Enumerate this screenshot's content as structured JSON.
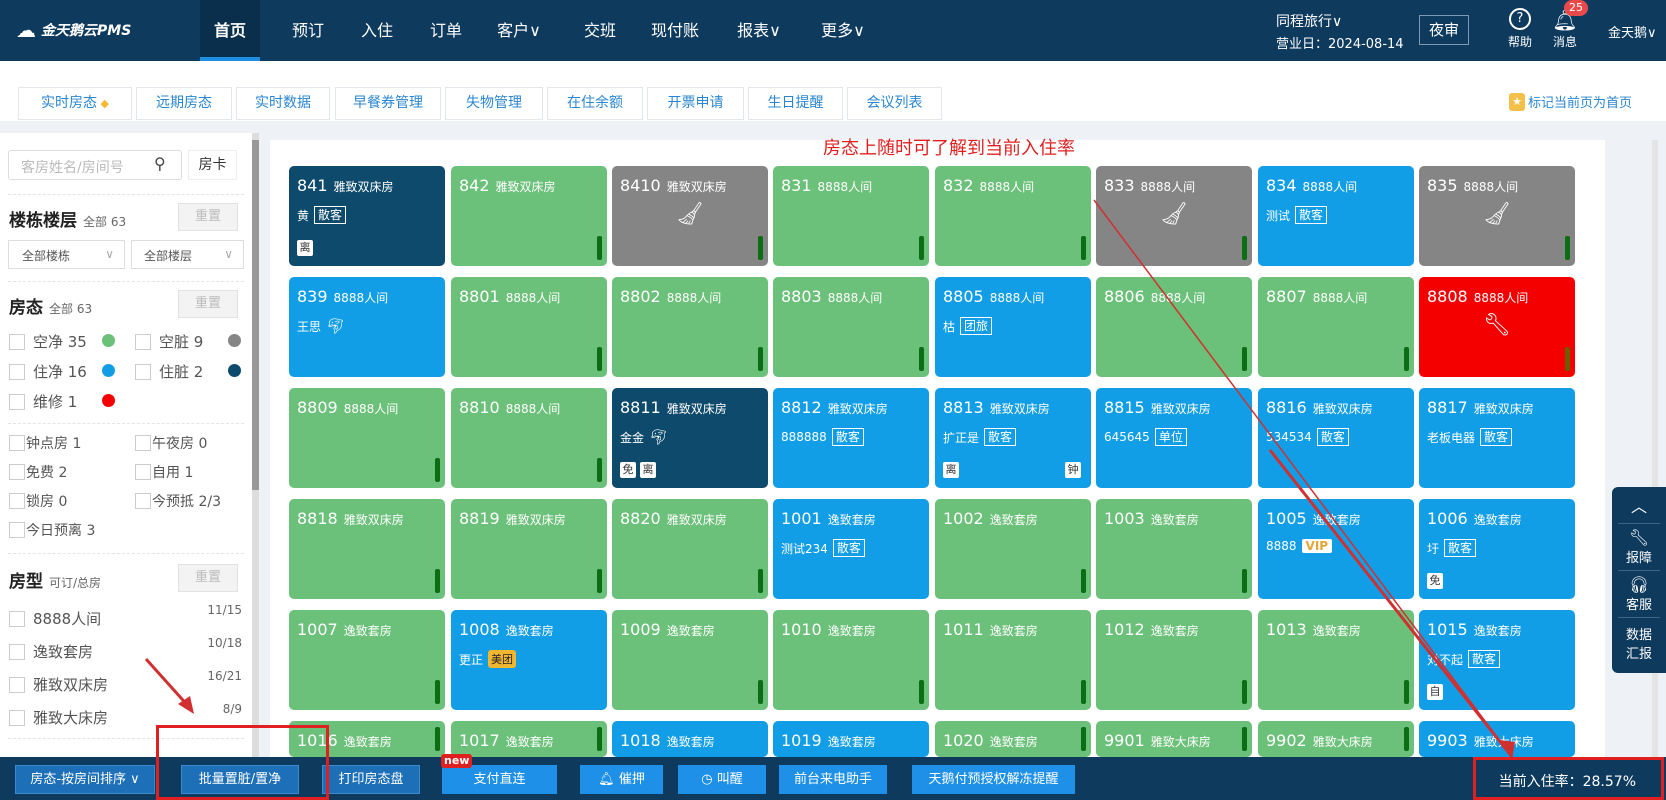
{
  "nav": {
    "logo": "金天鹅云PMS",
    "items": [
      {
        "label": "首页",
        "active": true
      },
      {
        "label": "预订"
      },
      {
        "label": "入住"
      },
      {
        "label": "订单"
      },
      {
        "label": "客户∨"
      },
      {
        "label": "交班"
      },
      {
        "label": "现付账"
      },
      {
        "label": "报表∨"
      },
      {
        "label": "更多∨"
      }
    ],
    "hotel": "同程旅行∨",
    "business_day": "营业日：2024-08-14",
    "night_audit": "夜审",
    "help": "帮助",
    "messages": "消息",
    "message_count": "25",
    "user": "金天鹅∨"
  },
  "tabs": [
    {
      "label": "实时房态",
      "active": true
    },
    {
      "label": "远期房态"
    },
    {
      "label": "实时数据"
    },
    {
      "label": "早餐券管理"
    },
    {
      "label": "失物管理"
    },
    {
      "label": "在住余额"
    },
    {
      "label": "开票申请"
    },
    {
      "label": "生日提醒"
    },
    {
      "label": "会议列表"
    }
  ],
  "set_home": "标记当前页为首页",
  "sidebar": {
    "search_placeholder": "客房姓名/房间号",
    "room_card": "房卡",
    "reset": "重置",
    "building": {
      "title": "楼栋楼层",
      "sub": "全部 63",
      "building_select": "全部楼栋",
      "floor_select": "全部楼层"
    },
    "status": {
      "title": "房态",
      "sub": "全部 63",
      "items": [
        {
          "label": "空净 35",
          "color": "#6cc17a"
        },
        {
          "label": "空脏 9",
          "color": "#858585"
        },
        {
          "label": "住净 16",
          "color": "#129ee6"
        },
        {
          "label": "住脏 2",
          "color": "#0d4a6b"
        },
        {
          "label": "维修 1",
          "color": "#f50000"
        }
      ]
    },
    "flags": [
      "钟点房 1",
      "午夜房 0",
      "免费 2",
      "自用 1",
      "锁房 0",
      "今预抵 2/3",
      "今日预离 3"
    ],
    "room_types": {
      "title": "房型",
      "sub": "可订/总房",
      "items": [
        {
          "label": "8888人间",
          "count": "11/15"
        },
        {
          "label": "逸致套房",
          "count": "10/18"
        },
        {
          "label": "雅致双床房",
          "count": "16/21"
        },
        {
          "label": "雅致大床房",
          "count": "8/9"
        }
      ]
    }
  },
  "annotation": "房态上随时可了解到当前入住率",
  "colors": {
    "vc": "#6cc17a",
    "vd": "#858585",
    "oc": "#129ee6",
    "od": "#0d4a6b",
    "repair": "#f50000"
  },
  "rooms": [
    [
      {
        "no": "841",
        "type": "雅致双床房",
        "s": "od",
        "guest": "黄",
        "tag": "散客",
        "badges": [
          "离"
        ]
      },
      {
        "no": "842",
        "type": "雅致双床房",
        "s": "vc"
      },
      {
        "no": "8410",
        "type": "雅致双床房",
        "s": "vd"
      },
      {
        "no": "831",
        "type": "8888人间",
        "s": "vc"
      },
      {
        "no": "832",
        "type": "8888人间",
        "s": "vc"
      },
      {
        "no": "833",
        "type": "8888人间",
        "s": "vd"
      },
      {
        "no": "834",
        "type": "8888人间",
        "s": "oc",
        "guest": "测试",
        "tag": "散客"
      },
      {
        "no": "835",
        "type": "8888人间",
        "s": "vd"
      }
    ],
    [
      {
        "no": "839",
        "type": "8888人间",
        "s": "oc",
        "guest": "王思",
        "icon": "ctrip"
      },
      {
        "no": "8801",
        "type": "8888人间",
        "s": "vc"
      },
      {
        "no": "8802",
        "type": "8888人间",
        "s": "vc"
      },
      {
        "no": "8803",
        "type": "8888人间",
        "s": "vc"
      },
      {
        "no": "8805",
        "type": "8888人间",
        "s": "oc",
        "guest": "枯",
        "tag": "团旅"
      },
      {
        "no": "8806",
        "type": "8888人间",
        "s": "vc"
      },
      {
        "no": "8807",
        "type": "8888人间",
        "s": "vc"
      },
      {
        "no": "8808",
        "type": "8888人间",
        "s": "repair"
      }
    ],
    [
      {
        "no": "8809",
        "type": "8888人间",
        "s": "vc"
      },
      {
        "no": "8810",
        "type": "8888人间",
        "s": "vc"
      },
      {
        "no": "8811",
        "type": "雅致双床房",
        "s": "od",
        "guest": "金金",
        "icon": "ctrip",
        "badges": [
          "免",
          "离"
        ]
      },
      {
        "no": "8812",
        "type": "雅致双床房",
        "s": "oc",
        "guest": "888888",
        "tag": "散客"
      },
      {
        "no": "8813",
        "type": "雅致双床房",
        "s": "oc",
        "guest": "扩正是",
        "tag": "散客",
        "badges": [
          "离"
        ],
        "rbadge": "钟"
      },
      {
        "no": "8815",
        "type": "雅致双床房",
        "s": "oc",
        "guest": "645645",
        "tag": "单位"
      },
      {
        "no": "8816",
        "type": "雅致双床房",
        "s": "oc",
        "guest": "534534",
        "tag": "散客"
      },
      {
        "no": "8817",
        "type": "雅致双床房",
        "s": "oc",
        "guest": "老板电器",
        "tag": "散客"
      }
    ],
    [
      {
        "no": "8818",
        "type": "雅致双床房",
        "s": "vc"
      },
      {
        "no": "8819",
        "type": "雅致双床房",
        "s": "vc"
      },
      {
        "no": "8820",
        "type": "雅致双床房",
        "s": "vc"
      },
      {
        "no": "1001",
        "type": "逸致套房",
        "s": "oc",
        "guest": "测试234",
        "tag": "散客"
      },
      {
        "no": "1002",
        "type": "逸致套房",
        "s": "vc"
      },
      {
        "no": "1003",
        "type": "逸致套房",
        "s": "vc"
      },
      {
        "no": "1005",
        "type": "逸致套房",
        "s": "oc",
        "guest": "8888",
        "vip": "VIP"
      },
      {
        "no": "1006",
        "type": "逸致套房",
        "s": "oc",
        "guest": "圩",
        "tag": "散客",
        "badges": [
          "免"
        ]
      }
    ],
    [
      {
        "no": "1007",
        "type": "逸致套房",
        "s": "vc"
      },
      {
        "no": "1008",
        "type": "逸致套房",
        "s": "oc",
        "guest": "更正",
        "meituan": "美团"
      },
      {
        "no": "1009",
        "type": "逸致套房",
        "s": "vc"
      },
      {
        "no": "1010",
        "type": "逸致套房",
        "s": "vc"
      },
      {
        "no": "1011",
        "type": "逸致套房",
        "s": "vc"
      },
      {
        "no": "1012",
        "type": "逸致套房",
        "s": "vc"
      },
      {
        "no": "1013",
        "type": "逸致套房",
        "s": "vc"
      },
      {
        "no": "1015",
        "type": "逸致套房",
        "s": "oc",
        "guest": "对不起",
        "tag": "散客",
        "badges": [
          "自"
        ]
      }
    ],
    [
      {
        "no": "1016",
        "type": "逸致套房",
        "s": "vc"
      },
      {
        "no": "1017",
        "type": "逸致套房",
        "s": "vc"
      },
      {
        "no": "1018",
        "type": "逸致套房",
        "s": "oc"
      },
      {
        "no": "1019",
        "type": "逸致套房",
        "s": "oc"
      },
      {
        "no": "1020",
        "type": "逸致套房",
        "s": "vc"
      },
      {
        "no": "9901",
        "type": "雅致大床房",
        "s": "vc"
      },
      {
        "no": "9902",
        "type": "雅致大床房",
        "s": "vc"
      },
      {
        "no": "9903",
        "type": "雅致大床房",
        "s": "oc"
      }
    ]
  ],
  "float_panel": {
    "report": "报障",
    "service": "客服",
    "data": "数据汇报"
  },
  "bottom": {
    "sort": "房态-按房间排序 ∨",
    "batch": "批量置脏/置净",
    "print": "打印房态盘",
    "pay": "支付直连",
    "new": "new",
    "deposit": "催押",
    "wake": "叫醒",
    "phone": "前台来电助手",
    "unfreeze": "天鹅付预授权解冻提醒",
    "rate": "当前入住率：28.57%"
  }
}
